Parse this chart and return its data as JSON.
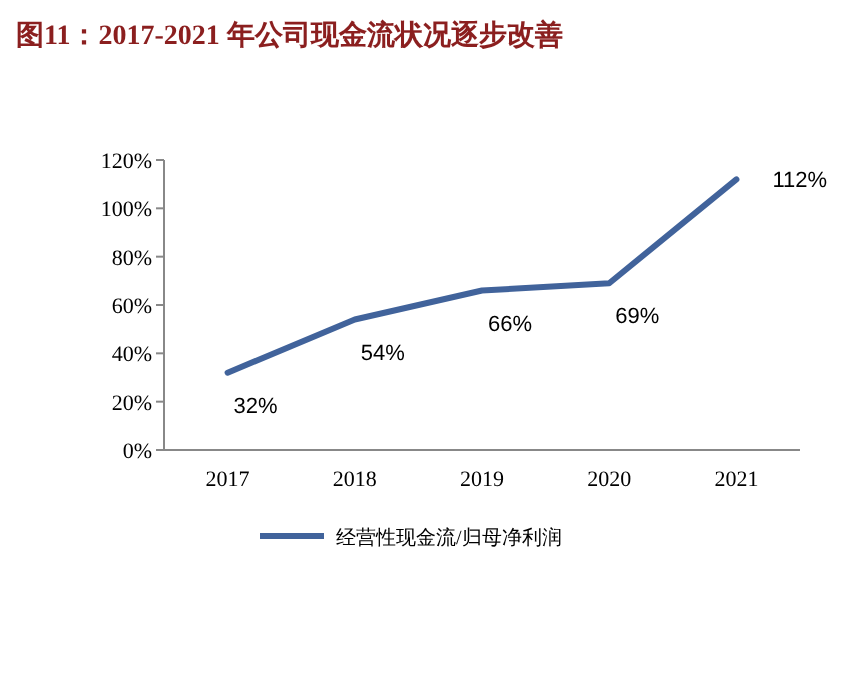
{
  "chart_data": {
    "type": "line",
    "title": "图11：2017-2021 年公司现金流状况逐步改善",
    "categories": [
      "2017",
      "2018",
      "2019",
      "2020",
      "2021"
    ],
    "series": [
      {
        "name": "经营性现金流/归母净利润",
        "color": "#41639b",
        "values": [
          32,
          54,
          66,
          69,
          112
        ],
        "value_labels": [
          "32%",
          "54%",
          "66%",
          "69%",
          "112%"
        ]
      }
    ],
    "ylim": [
      0,
      120
    ],
    "yticks": [
      {
        "value": 0,
        "label": "0%"
      },
      {
        "value": 20,
        "label": "20%"
      },
      {
        "value": 40,
        "label": "40%"
      },
      {
        "value": 60,
        "label": "60%"
      },
      {
        "value": 80,
        "label": "80%"
      },
      {
        "value": 100,
        "label": "100%"
      },
      {
        "value": 120,
        "label": "120%"
      }
    ],
    "legend": "bottom",
    "marker": "none",
    "line_style": "solid",
    "grid": false
  }
}
